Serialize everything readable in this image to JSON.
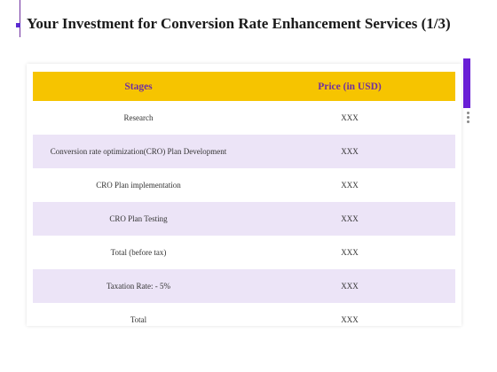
{
  "header": {
    "title": "Your Investment for Conversion Rate Enhancement Services (1/3)"
  },
  "table": {
    "columns": [
      "Stages",
      "Price (in USD)"
    ],
    "rows": [
      [
        "Research",
        "XXX"
      ],
      [
        "Conversion rate optimization(CRO) Plan Development",
        "XXX"
      ],
      [
        "CRO Plan implementation",
        "XXX"
      ],
      [
        "CRO Plan Testing",
        "XXX"
      ],
      [
        "Total (before tax)",
        "XXX"
      ],
      [
        "Taxation Rate: - 5%",
        "XXX"
      ],
      [
        "Total",
        "XXX"
      ]
    ]
  }
}
